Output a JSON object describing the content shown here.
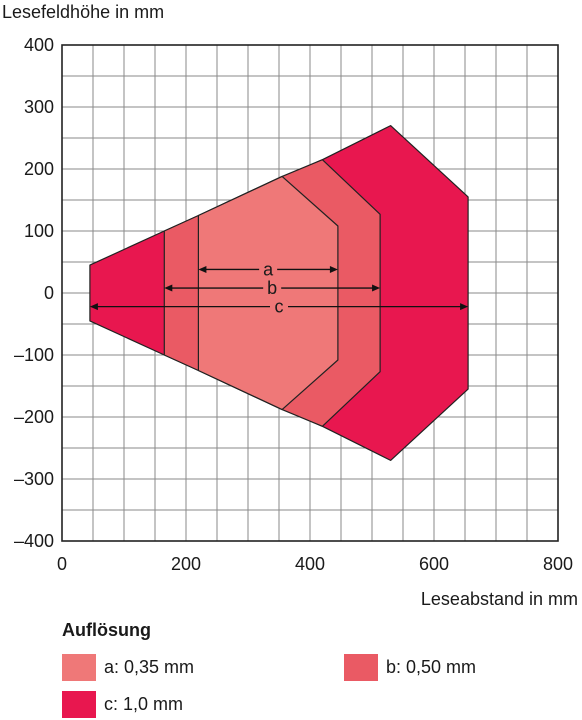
{
  "chart_data": {
    "type": "area",
    "ylabel": "Lesefeldhöhe in mm",
    "xlabel": "Leseabstand in mm",
    "xlim": [
      0,
      800
    ],
    "ylim": [
      -400,
      400
    ],
    "x_ticks": [
      0,
      200,
      400,
      600,
      800
    ],
    "y_ticks": [
      400,
      300,
      200,
      100,
      0,
      -100,
      -200,
      -300,
      -400
    ],
    "y_tick_labels": [
      "400",
      "300",
      "200",
      "100",
      "0",
      "–100",
      "–200",
      "–300",
      "–400"
    ],
    "grid": true,
    "grid_step_x": 50,
    "grid_step_y": 50,
    "series": [
      {
        "key": "c",
        "color": "#e8174f",
        "polygon": [
          [
            45,
            45
          ],
          [
            165,
            100
          ],
          [
            420,
            215
          ],
          [
            530,
            270
          ],
          [
            655,
            155
          ],
          [
            655,
            -155
          ],
          [
            530,
            -270
          ],
          [
            420,
            -215
          ],
          [
            165,
            -100
          ],
          [
            45,
            -45
          ]
        ]
      },
      {
        "key": "b",
        "color": "#ea5a64",
        "polygon": [
          [
            165,
            100
          ],
          [
            220,
            125
          ],
          [
            355,
            188
          ],
          [
            420,
            215
          ],
          [
            513,
            127
          ],
          [
            513,
            -127
          ],
          [
            420,
            -215
          ],
          [
            355,
            -188
          ],
          [
            220,
            -125
          ],
          [
            165,
            -100
          ]
        ]
      },
      {
        "key": "a",
        "color": "#ef7878",
        "polygon": [
          [
            220,
            125
          ],
          [
            355,
            188
          ],
          [
            445,
            108
          ],
          [
            445,
            -108
          ],
          [
            355,
            -188
          ],
          [
            220,
            -125
          ]
        ]
      }
    ],
    "ranges": [
      {
        "label": "a",
        "x0": 220,
        "x1": 445,
        "y": 38
      },
      {
        "label": "b",
        "x0": 165,
        "x1": 513,
        "y": 8
      },
      {
        "label": "c",
        "x0": 45,
        "x1": 655,
        "y": -22
      }
    ],
    "legend": {
      "title": "Auflösung",
      "position": "bottom",
      "items": [
        {
          "key": "a",
          "label": "a: 0,35 mm",
          "color": "#ef7878"
        },
        {
          "key": "b",
          "label": "b: 0,50 mm",
          "color": "#ea5a64"
        },
        {
          "key": "c",
          "label": "c: 1,0 mm",
          "color": "#e8174f"
        }
      ]
    }
  }
}
